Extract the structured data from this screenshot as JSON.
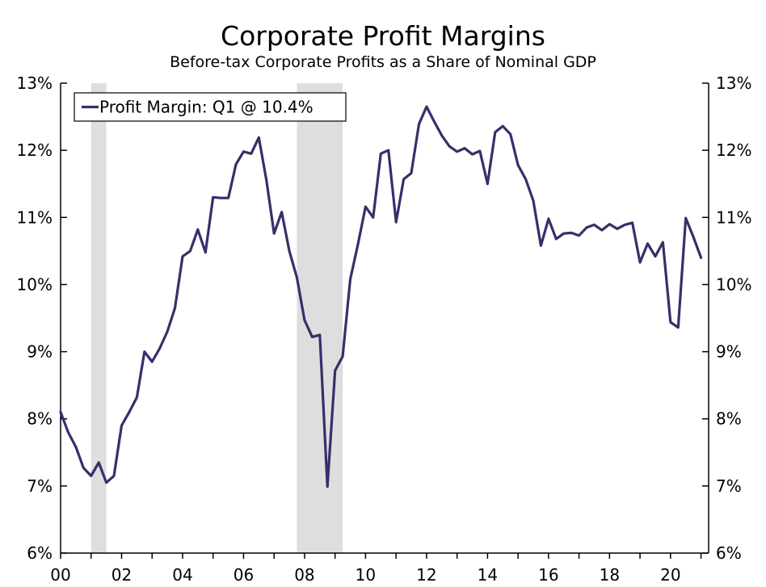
{
  "chart_data": {
    "type": "line",
    "title": "Corporate Profit Margins",
    "subtitle": "Before-tax Corporate Profits as a Share of Nominal GDP",
    "xlabel": "",
    "ylabel": "",
    "xlim": [
      2000.0,
      2021.25
    ],
    "ylim": [
      6,
      13
    ],
    "y_ticks": [
      6,
      7,
      8,
      9,
      10,
      11,
      12,
      13
    ],
    "y_tick_labels": [
      "6%",
      "7%",
      "8%",
      "9%",
      "10%",
      "11%",
      "12%",
      "13%"
    ],
    "x_ticks": [
      2000,
      2002,
      2004,
      2006,
      2008,
      2010,
      2012,
      2014,
      2016,
      2018,
      2020
    ],
    "x_tick_labels": [
      "00",
      "02",
      "04",
      "06",
      "08",
      "10",
      "12",
      "14",
      "16",
      "18",
      "20"
    ],
    "recessions": [
      {
        "start": 2001.0,
        "end": 2001.5
      },
      {
        "start": 2007.75,
        "end": 2009.25
      }
    ],
    "legend": "top-left",
    "series": [
      {
        "name": "Profit Margin: Q1 @ 10.4%",
        "color": "#35306b",
        "x": [
          2000.0,
          2000.25,
          2000.5,
          2000.75,
          2001.0,
          2001.25,
          2001.5,
          2001.75,
          2002.0,
          2002.25,
          2002.5,
          2002.75,
          2003.0,
          2003.25,
          2003.5,
          2003.75,
          2004.0,
          2004.25,
          2004.5,
          2004.75,
          2005.0,
          2005.25,
          2005.5,
          2005.75,
          2006.0,
          2006.25,
          2006.5,
          2006.75,
          2007.0,
          2007.25,
          2007.5,
          2007.75,
          2008.0,
          2008.25,
          2008.5,
          2008.75,
          2009.0,
          2009.25,
          2009.5,
          2009.75,
          2010.0,
          2010.25,
          2010.5,
          2010.75,
          2011.0,
          2011.25,
          2011.5,
          2011.75,
          2012.0,
          2012.25,
          2012.5,
          2012.75,
          2013.0,
          2013.25,
          2013.5,
          2013.75,
          2014.0,
          2014.25,
          2014.5,
          2014.75,
          2015.0,
          2015.25,
          2015.5,
          2015.75,
          2016.0,
          2016.25,
          2016.5,
          2016.75,
          2017.0,
          2017.25,
          2017.5,
          2017.75,
          2018.0,
          2018.25,
          2018.5,
          2018.75,
          2019.0,
          2019.25,
          2019.5,
          2019.75,
          2020.0,
          2020.25,
          2020.5,
          2020.75,
          2021.0
        ],
        "values": [
          8.1,
          7.8,
          7.58,
          7.27,
          7.15,
          7.35,
          7.05,
          7.15,
          7.9,
          8.1,
          8.32,
          9.0,
          8.85,
          9.05,
          9.3,
          9.65,
          10.42,
          10.5,
          10.82,
          10.48,
          11.3,
          11.29,
          11.29,
          11.79,
          11.98,
          11.95,
          12.19,
          11.55,
          10.76,
          11.08,
          10.5,
          10.1,
          9.47,
          9.22,
          9.25,
          6.99,
          8.72,
          8.93,
          10.08,
          10.6,
          11.16,
          11.0,
          11.95,
          12.0,
          10.93,
          11.57,
          11.66,
          12.39,
          12.65,
          12.43,
          12.22,
          12.06,
          11.98,
          12.03,
          11.94,
          11.99,
          11.5,
          12.27,
          12.36,
          12.24,
          11.78,
          11.57,
          11.25,
          10.58,
          10.98,
          10.68,
          10.76,
          10.77,
          10.73,
          10.85,
          10.89,
          10.81,
          10.9,
          10.83,
          10.89,
          10.92,
          10.33,
          10.61,
          10.42,
          10.63,
          9.44,
          9.36,
          10.99,
          10.71,
          10.4
        ]
      }
    ]
  }
}
